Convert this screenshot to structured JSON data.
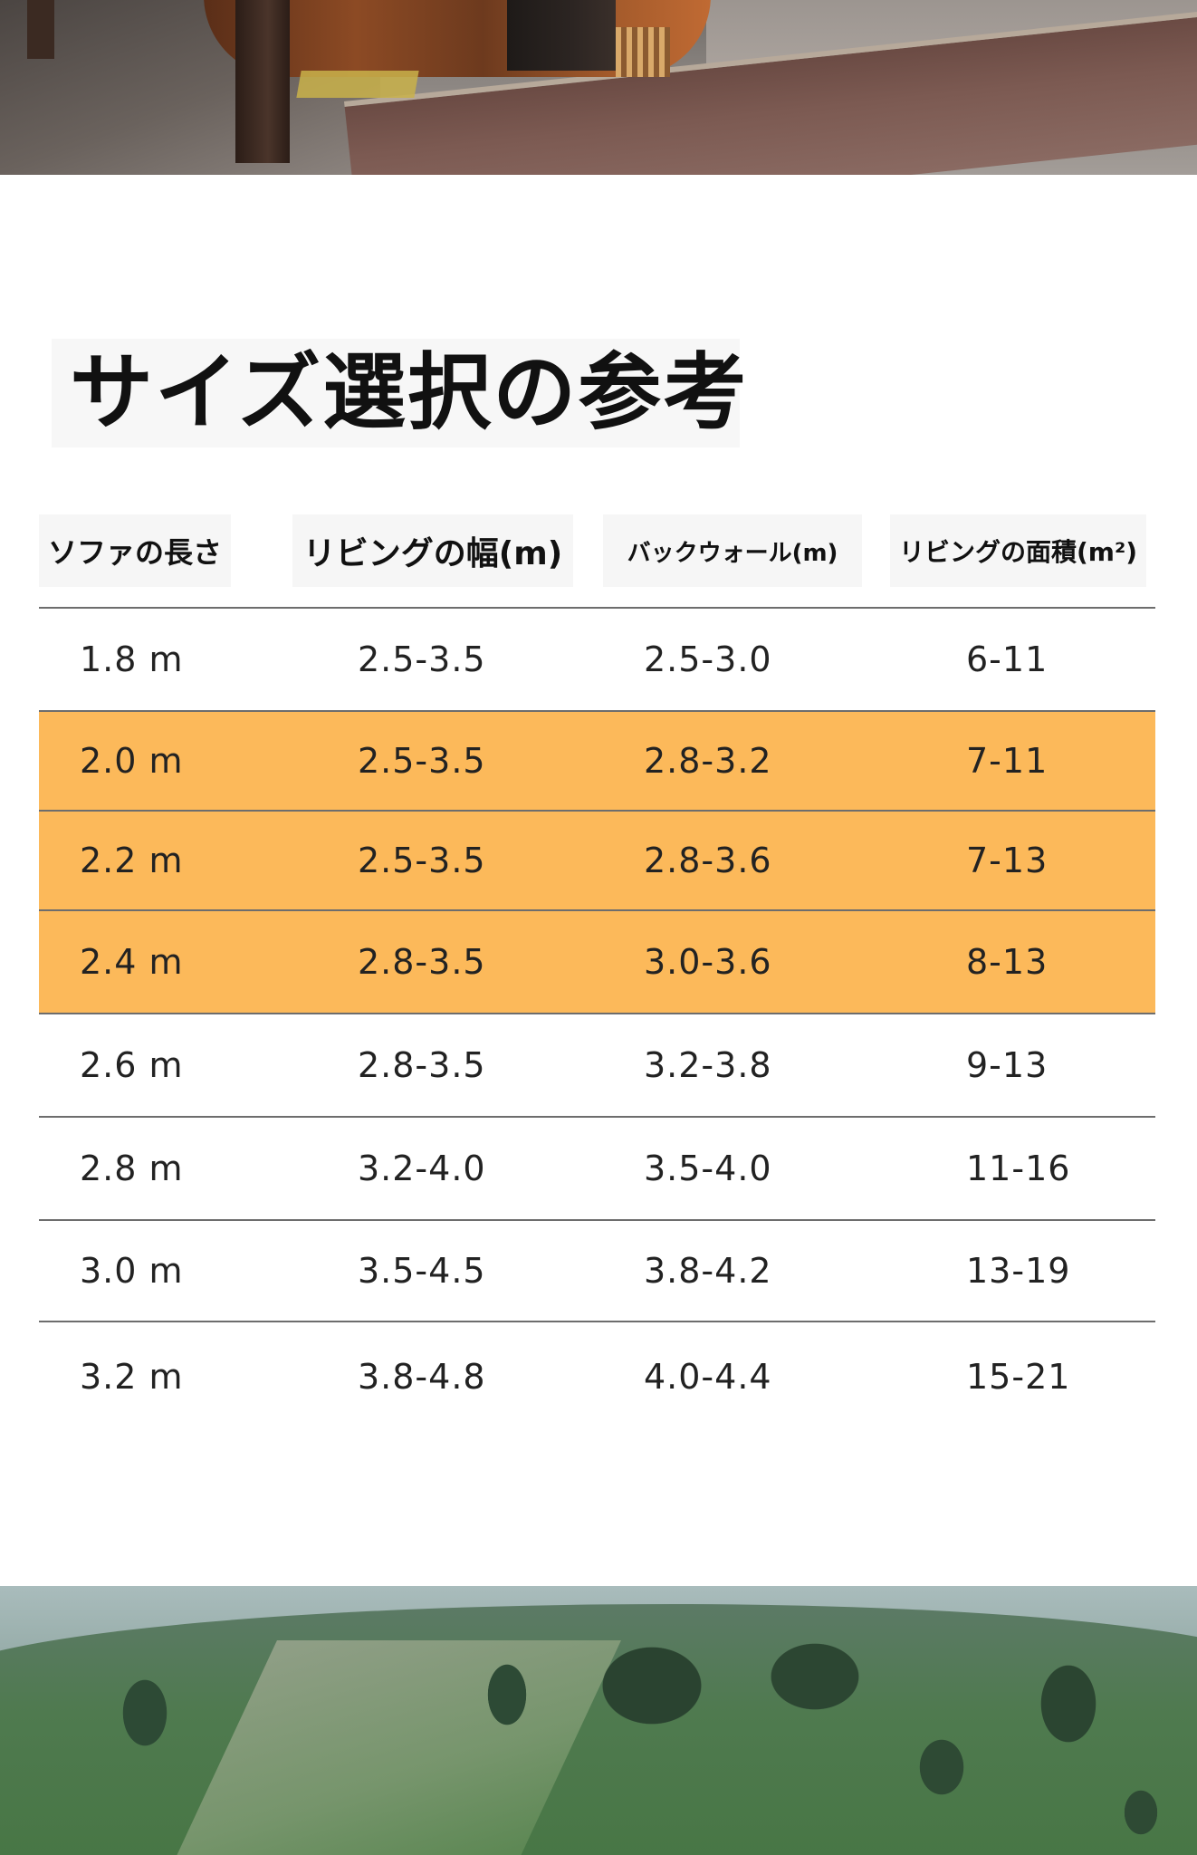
{
  "heading": {
    "title": "サイズ選択の参考"
  },
  "table": {
    "headers": [
      "ソファの長さ",
      "リビングの幅(m)",
      "バックウォール(m)",
      "リビングの面積(m²)"
    ],
    "rows": [
      {
        "sofa_length": "1.8 m",
        "living_width": "2.5-3.5",
        "back_wall": "2.5-3.0",
        "living_area": "6-11",
        "highlighted": false
      },
      {
        "sofa_length": "2.0 m",
        "living_width": "2.5-3.5",
        "back_wall": "2.8-3.2",
        "living_area": "7-11",
        "highlighted": true
      },
      {
        "sofa_length": "2.2 m",
        "living_width": "2.5-3.5",
        "back_wall": "2.8-3.6",
        "living_area": "7-13",
        "highlighted": true
      },
      {
        "sofa_length": "2.4 m",
        "living_width": "2.8-3.5",
        "back_wall": "3.0-3.6",
        "living_area": "8-13",
        "highlighted": true
      },
      {
        "sofa_length": "2.6 m",
        "living_width": "2.8-3.5",
        "back_wall": "3.2-3.8",
        "living_area": "9-13",
        "highlighted": false
      },
      {
        "sofa_length": "2.8 m",
        "living_width": "3.2-4.0",
        "back_wall": "3.5-4.0",
        "living_area": "11-16",
        "highlighted": false
      },
      {
        "sofa_length": "3.0 m",
        "living_width": "3.5-4.5",
        "back_wall": "3.8-4.2",
        "living_area": "13-19",
        "highlighted": false
      },
      {
        "sofa_length": "3.2 m",
        "living_width": "3.8-4.8",
        "back_wall": "4.0-4.4",
        "living_area": "15-21",
        "highlighted": false
      }
    ]
  },
  "colors": {
    "highlight_row": "#fcb95a",
    "rule_line": "#6d6d6d",
    "header_bg": "#f6f6f6"
  },
  "images": {
    "top": "interior-photo",
    "bottom": "mountain-landscape-photo"
  }
}
